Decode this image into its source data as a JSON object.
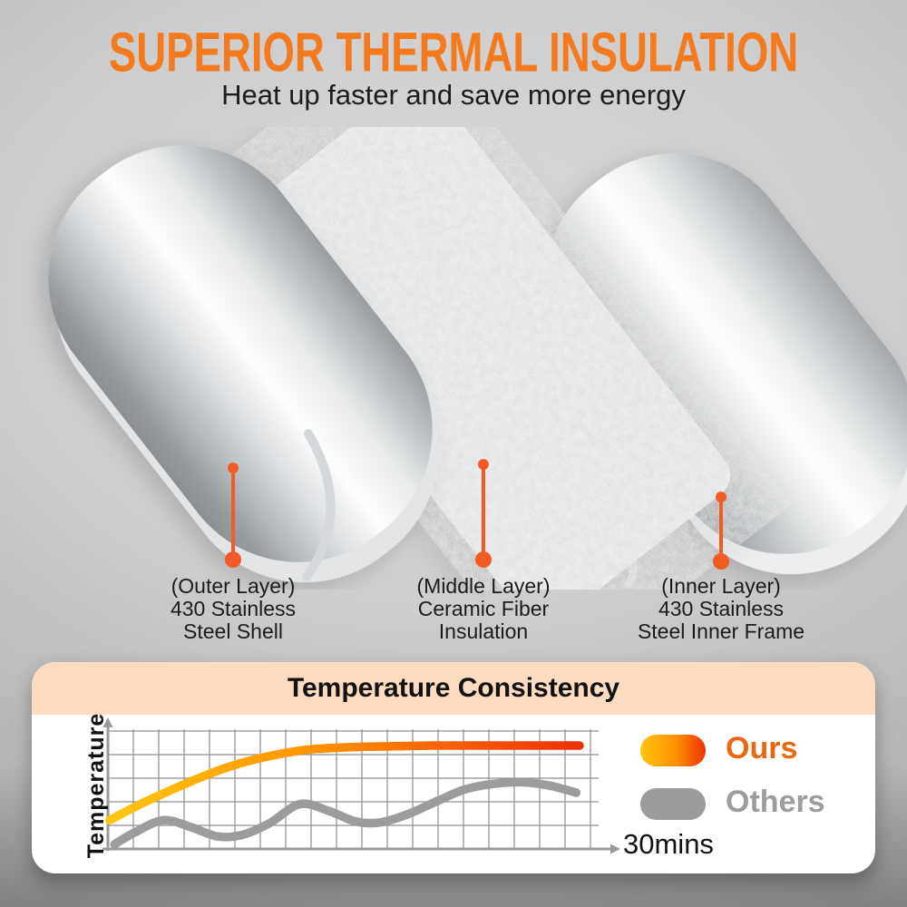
{
  "header": {
    "title": "SUPERIOR THERMAL INSULATION",
    "subtitle": "Heat up faster and save more energy"
  },
  "layers": [
    {
      "title": "(Outer Layer)",
      "line2": "430 Stainless",
      "line3": "Steel Shell"
    },
    {
      "title": "(Middle Layer)",
      "line2": "Ceramic Fiber",
      "line3": "Insulation"
    },
    {
      "title": "(Inner Layer)",
      "line2": "430 Stainless",
      "line3": "Steel Inner Frame"
    }
  ],
  "panel": {
    "title": "Temperature Consistency"
  },
  "chart_data": {
    "type": "line",
    "title": "Temperature Consistency",
    "xlabel": "30mins",
    "ylabel": "Temperature",
    "x_unit": "minutes",
    "x_range": [
      0,
      30
    ],
    "y_range": [
      0,
      100
    ],
    "grid": true,
    "axis_tick_labels": false,
    "legend_position": "right",
    "series": [
      {
        "name": "Ours",
        "style": "gradient",
        "colors": [
          "#FFC60F",
          "#FF9000",
          "#ED3007"
        ],
        "points": [
          [
            0.1,
            25
          ],
          [
            2,
            39
          ],
          [
            4,
            52
          ],
          [
            6,
            64
          ],
          [
            8,
            74
          ],
          [
            10,
            81
          ],
          [
            12,
            86
          ],
          [
            14,
            88
          ],
          [
            16,
            89
          ],
          [
            18,
            89.5
          ],
          [
            20,
            90
          ],
          [
            22,
            90
          ],
          [
            24,
            90
          ],
          [
            26,
            90
          ],
          [
            28,
            90
          ],
          [
            29,
            90
          ]
        ]
      },
      {
        "name": "Others",
        "style": "solid",
        "colors": [
          "#9C9C9C"
        ],
        "points": [
          [
            0.4,
            4
          ],
          [
            1.6,
            14
          ],
          [
            3.4,
            25
          ],
          [
            5.1,
            19
          ],
          [
            6.7,
            11
          ],
          [
            8.2,
            12
          ],
          [
            9.9,
            22
          ],
          [
            11.8,
            39
          ],
          [
            13.6,
            33
          ],
          [
            15.2,
            24
          ],
          [
            16.7,
            23
          ],
          [
            18.4,
            30
          ],
          [
            20.3,
            42
          ],
          [
            22,
            52
          ],
          [
            23.9,
            57
          ],
          [
            25.6,
            58
          ],
          [
            27.2,
            55
          ],
          [
            28.8,
            49
          ]
        ]
      }
    ]
  },
  "colors": {
    "accent_orange": "#F5791D",
    "connector_orange": "#F25C24",
    "panel_header_bg": "#FBDCC0",
    "ours_text": "#E8680F",
    "others_gray": "#9C9C9C"
  }
}
